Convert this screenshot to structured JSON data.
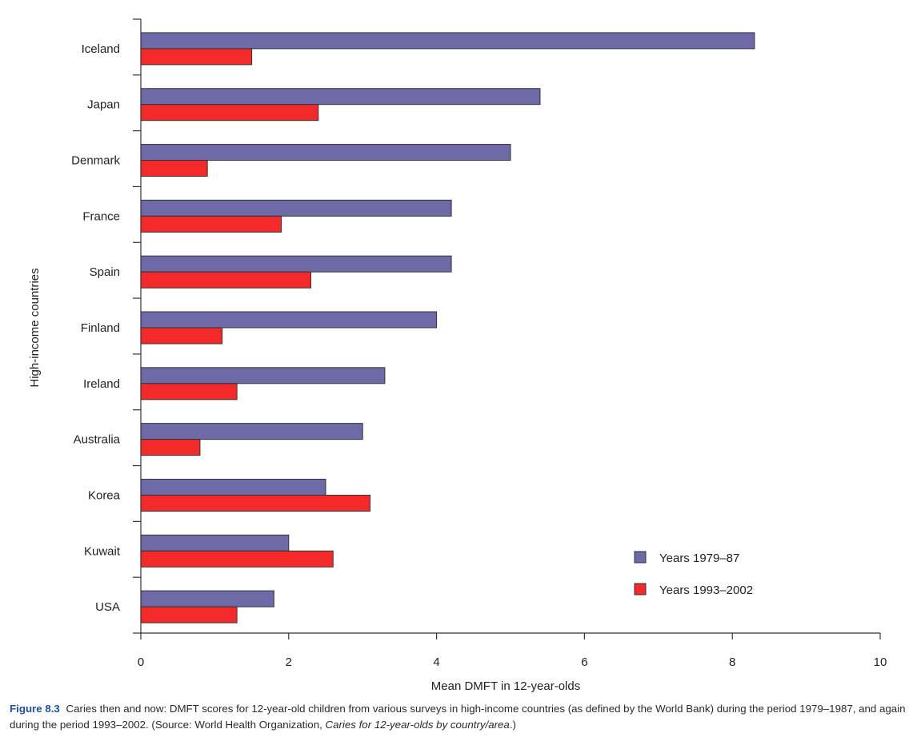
{
  "chart_data": {
    "type": "bar",
    "orientation": "horizontal",
    "categories": [
      "Iceland",
      "Japan",
      "Denmark",
      "France",
      "Spain",
      "Finland",
      "Ireland",
      "Australia",
      "Korea",
      "Kuwait",
      "USA"
    ],
    "series": [
      {
        "name": "Years 1979–87",
        "color": "#6e6aa8",
        "values": [
          8.3,
          5.4,
          5.0,
          4.2,
          4.2,
          4.0,
          3.3,
          3.0,
          2.5,
          2.0,
          1.8
        ]
      },
      {
        "name": "Years 1993–2002",
        "color": "#f42a2a",
        "values": [
          1.5,
          2.4,
          0.9,
          1.9,
          2.3,
          1.1,
          1.3,
          0.8,
          3.1,
          2.6,
          1.3
        ]
      }
    ],
    "xlabel": "Mean DMFT in 12-year-olds",
    "ylabel": "High-income countries",
    "xlim": [
      0,
      10
    ],
    "xticks": [
      0,
      2,
      4,
      6,
      8,
      10
    ],
    "grid": false,
    "legend_position": "bottom-right"
  },
  "caption": {
    "label": "Figure 8.3",
    "text": "Caries then and now: DMFT scores for 12-year-old children from various surveys in high-income countries (as defined by the World Bank) during the period 1979–1987, and again during the period 1993–2002. (Source: World Health Organization, ",
    "source_italic": "Caries for 12-year-olds by country/area",
    "text_end": ".)"
  }
}
